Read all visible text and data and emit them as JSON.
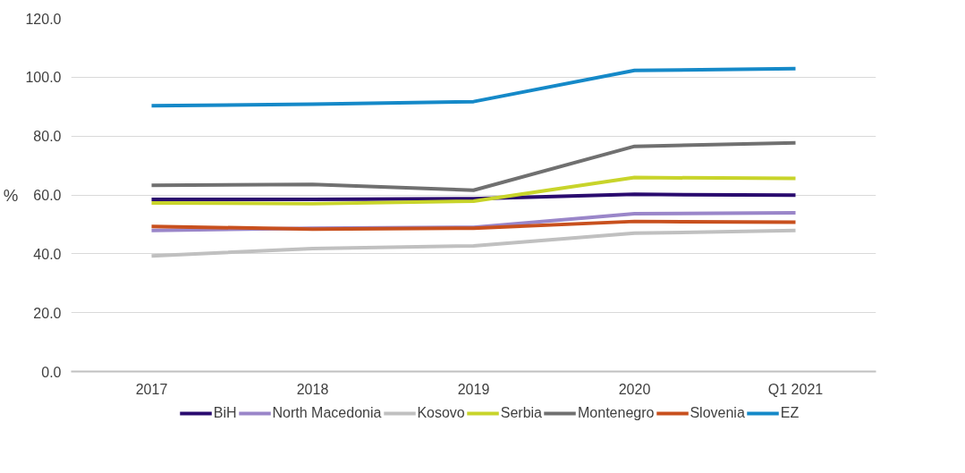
{
  "chart_data": {
    "type": "line",
    "ylabel": "%",
    "categories": [
      "2017",
      "2018",
      "2019",
      "2020",
      "Q1 2021"
    ],
    "ylim": [
      0,
      120
    ],
    "yticks": [
      {
        "value": 0,
        "label": "0.0"
      },
      {
        "value": 20,
        "label": "20.0"
      },
      {
        "value": 40,
        "label": "40.0"
      },
      {
        "value": 60,
        "label": "60.0"
      },
      {
        "value": 80,
        "label": "80.0"
      },
      {
        "value": 100,
        "label": "100.0"
      },
      {
        "value": 120,
        "label": "120.0"
      }
    ],
    "grid": "y",
    "legend": "bottom",
    "marker": "none",
    "line_style": "solid",
    "series": [
      {
        "name": "BiH",
        "color": "#2a0b6f",
        "values": [
          58.5,
          58.5,
          58.7,
          60.2,
          59.9
        ]
      },
      {
        "name": "North Macedonia",
        "color": "#9a86c9",
        "values": [
          47.9,
          48.7,
          49.0,
          53.6,
          53.9
        ]
      },
      {
        "name": "Kosovo",
        "color": "#c0c0c0",
        "values": [
          39.3,
          41.8,
          42.7,
          47.0,
          47.9
        ]
      },
      {
        "name": "Serbia",
        "color": "#c8d42a",
        "values": [
          57.3,
          57.0,
          57.9,
          65.9,
          65.6
        ]
      },
      {
        "name": "Montenegro",
        "color": "#707070",
        "values": [
          63.3,
          63.6,
          61.6,
          76.5,
          77.7
        ]
      },
      {
        "name": "Slovenia",
        "color": "#c8501e",
        "values": [
          49.3,
          48.4,
          48.7,
          51.0,
          50.7
        ]
      },
      {
        "name": "EZ",
        "color": "#1589c8",
        "values": [
          90.3,
          90.8,
          91.7,
          102.3,
          102.9
        ]
      }
    ]
  }
}
